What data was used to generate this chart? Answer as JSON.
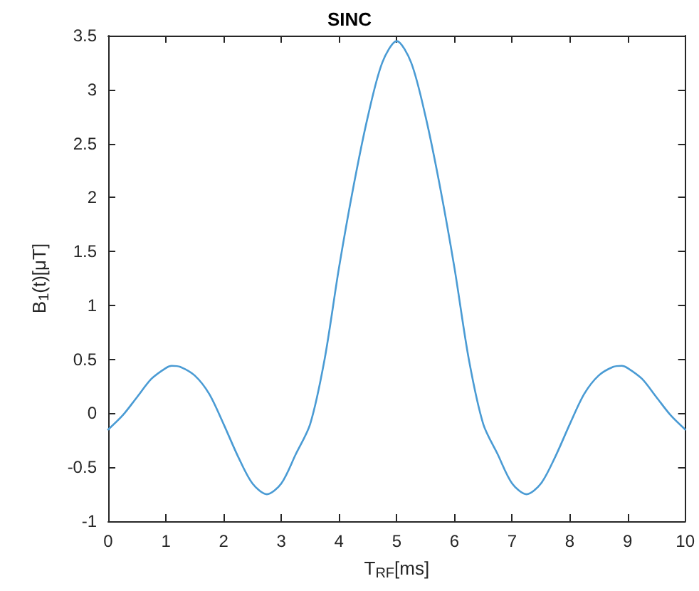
{
  "chart_data": {
    "type": "line",
    "title": "SINC",
    "xlabel": "T$_{RF}$[ms]",
    "ylabel": "B$_{1}$(t)[μT]",
    "x": [
      0,
      0.25,
      0.5,
      0.75,
      1,
      1.1,
      1.25,
      1.5,
      1.75,
      2,
      2.25,
      2.5,
      2.75,
      3,
      3.25,
      3.5,
      3.75,
      4,
      4.25,
      4.5,
      4.75,
      5,
      5.25,
      5.5,
      5.75,
      6,
      6.25,
      6.5,
      6.75,
      7,
      7.25,
      7.5,
      7.75,
      8,
      8.25,
      8.5,
      8.75,
      8.9,
      9,
      9.25,
      9.5,
      9.75,
      10
    ],
    "series": [
      {
        "color": "#4a9bd4",
        "values": [
          -0.15,
          -0.02,
          0.15,
          0.32,
          0.42,
          0.44,
          0.43,
          0.35,
          0.18,
          -0.1,
          -0.4,
          -0.65,
          -0.75,
          -0.65,
          -0.38,
          -0.1,
          0.5,
          1.35,
          2.1,
          2.75,
          3.25,
          3.45,
          3.25,
          2.75,
          2.1,
          1.35,
          0.5,
          -0.1,
          -0.38,
          -0.65,
          -0.75,
          -0.65,
          -0.4,
          -0.1,
          0.18,
          0.35,
          0.43,
          0.44,
          0.42,
          0.32,
          0.15,
          -0.02,
          -0.15
        ]
      }
    ],
    "xlim": [
      0,
      10
    ],
    "xticks": [
      0,
      1,
      2,
      3,
      4,
      5,
      6,
      7,
      8,
      9,
      10
    ],
    "ylim": [
      -1,
      3.5
    ],
    "yticks": [
      -1,
      -0.5,
      0,
      0.5,
      1,
      1.5,
      2,
      2.5,
      3,
      3.5
    ],
    "grid": false,
    "marker": "none",
    "line_style": "solid"
  }
}
